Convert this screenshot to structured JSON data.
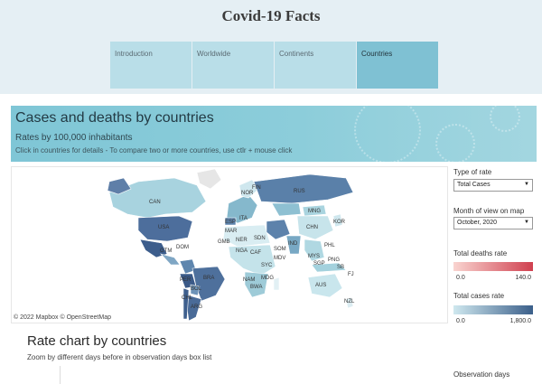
{
  "app": {
    "title": "Covid-19 Facts"
  },
  "tabs": [
    {
      "label": "Introduction",
      "active": false
    },
    {
      "label": "Worldwide",
      "active": false
    },
    {
      "label": "Continents",
      "active": false
    },
    {
      "label": "Countries",
      "active": true
    }
  ],
  "banner": {
    "title": "Cases and deaths by countries",
    "subtitle": "Rates by 100,000 inhabitants",
    "hint": "Click in countries for details - To compare two or more countries, use ctlr + mouse click"
  },
  "map": {
    "credit": "© 2022 Mapbox  © OpenStreetMap",
    "country_labels": [
      "CAN",
      "USA",
      "DOM",
      "GTM",
      "PER",
      "BRA",
      "ARG",
      "CHL",
      "BOL",
      "NOR",
      "FIN",
      "ESP",
      "ITA",
      "MAR",
      "GMB",
      "NER",
      "SDN",
      "SOM",
      "NGA",
      "CAF",
      "SYC",
      "NAM",
      "MDG",
      "BWA",
      "RUS",
      "MNG",
      "CHN",
      "KOR",
      "PHL",
      "IND",
      "MDV",
      "MYS",
      "SGP",
      "AUS",
      "NZL",
      "FJ",
      "SB",
      "PNG"
    ]
  },
  "controls": {
    "type_of_rate": {
      "label": "Type of rate",
      "value": "Total Cases"
    },
    "month": {
      "label": "Month of view on map",
      "value": "October, 2020"
    },
    "deaths_legend": {
      "label": "Total deaths rate",
      "min": "0.0",
      "max": "140.0",
      "colors": [
        "#f9d4d0",
        "#d0404f"
      ]
    },
    "cases_legend": {
      "label": "Total cases rate",
      "min": "0.0",
      "max": "1,800.0",
      "colors": [
        "#cfe8ef",
        "#3b5f8a"
      ]
    }
  },
  "rate_chart": {
    "title": "Rate chart by countries",
    "subtitle": "Zoom by different days before in observation days box list",
    "observation_label": "Observation days"
  }
}
